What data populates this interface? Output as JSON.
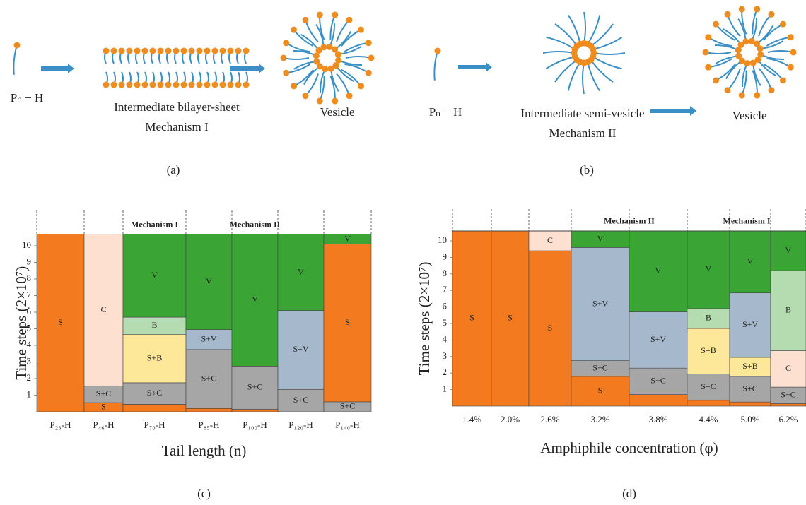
{
  "panels": [
    {
      "monomer": "Pₙ − H",
      "intermediate": "Intermediate bilayer-sheet",
      "mechanism": "Mechanism I",
      "product": "Vesicle",
      "label": "(a)"
    },
    {
      "monomer": "Pₙ − H",
      "intermediate": "Intermediate semi-vesicle",
      "mechanism": "Mechanism II",
      "product": "Vesicle",
      "label": "(b)"
    }
  ],
  "chart_data": [
    {
      "type": "bar",
      "stacked": true,
      "ylabel": "Time steps (2×10⁷)",
      "xlabel": "Tail length (n)",
      "panel_label": "(c)",
      "annotations": [
        "Mechanism I",
        "Mechanism II"
      ],
      "ylim": [
        0,
        10.7
      ],
      "yticks": [
        1,
        2,
        3,
        4,
        5,
        6,
        7,
        8,
        9,
        10
      ],
      "categories": [
        "P₂₃-H",
        "P₄₆-H",
        "P₇₀-H",
        "P₈₅-H",
        "P₁₀₀-H",
        "P₁₂₀-H",
        "P₁₄₀-H"
      ],
      "segments": [
        [
          {
            "label": "S",
            "value": 10.7,
            "color": "#f47a20"
          }
        ],
        [
          {
            "label": "S",
            "value": 0.55,
            "color": "#f47a20"
          },
          {
            "label": "S+C",
            "value": 1.0,
            "color": "#a6a6a6"
          },
          {
            "label": "C",
            "value": 9.15,
            "color": "#fde0d0"
          }
        ],
        [
          {
            "value": 0.45,
            "color": "#f47a20"
          },
          {
            "label": "S+C",
            "value": 1.3,
            "color": "#a6a6a6"
          },
          {
            "label": "S+B",
            "value": 2.9,
            "color": "#fde89a"
          },
          {
            "label": "B",
            "value": 1.05,
            "color": "#b5dbb0"
          },
          {
            "label": "V",
            "value": 5.0,
            "color": "#3aa535"
          }
        ],
        [
          {
            "value": 0.2,
            "color": "#f47a20"
          },
          {
            "label": "S+C",
            "value": 3.55,
            "color": "#a6a6a6"
          },
          {
            "label": "S+V",
            "value": 1.2,
            "color": "#a6b8cc"
          },
          {
            "label": "V",
            "value": 5.75,
            "color": "#3aa535"
          }
        ],
        [
          {
            "value": 0.15,
            "color": "#f47a20"
          },
          {
            "label": "S+C",
            "value": 2.6,
            "color": "#a6a6a6"
          },
          {
            "label": "V",
            "value": 7.95,
            "color": "#3aa535"
          }
        ],
        [
          {
            "label": "S+C",
            "value": 1.35,
            "color": "#a6a6a6"
          },
          {
            "label": "S+V",
            "value": 4.75,
            "color": "#a6b8cc"
          },
          {
            "label": "V",
            "value": 4.6,
            "color": "#3aa535"
          }
        ],
        [
          {
            "label": "S+C",
            "value": 0.6,
            "color": "#a6a6a6"
          },
          {
            "label": "S",
            "value": 9.5,
            "color": "#f47a20"
          },
          {
            "label": "V",
            "value": 0.6,
            "color": "#3aa535"
          }
        ]
      ]
    },
    {
      "type": "bar",
      "stacked": true,
      "ylabel": "Time steps (2×10⁷)",
      "xlabel": "Amphiphile concentration (φ)",
      "panel_label": "(d)",
      "annotations": [
        "Mechanism II",
        "Mechanism I"
      ],
      "ylim": [
        0,
        10.6
      ],
      "yticks": [
        1,
        2,
        3,
        4,
        5,
        6,
        7,
        8,
        9,
        10
      ],
      "categories": [
        "1.4%",
        "2.0%",
        "2.6%",
        "3.2%",
        "3.8%",
        "4.4%",
        "5.0%",
        "6.2%"
      ],
      "segments": [
        [
          {
            "label": "S",
            "value": 10.6,
            "color": "#f47a20"
          }
        ],
        [
          {
            "label": "S",
            "value": 10.6,
            "color": "#f47a20"
          }
        ],
        [
          {
            "label": "S",
            "value": 9.4,
            "color": "#f47a20"
          },
          {
            "label": "C",
            "value": 1.2,
            "color": "#fde0d0"
          }
        ],
        [
          {
            "label": "S",
            "value": 1.8,
            "color": "#f47a20"
          },
          {
            "label": "S+C",
            "value": 0.95,
            "color": "#a6a6a6"
          },
          {
            "label": "S+V",
            "value": 6.85,
            "color": "#a6b8cc"
          },
          {
            "label": "V",
            "value": 1.0,
            "color": "#3aa535"
          }
        ],
        [
          {
            "value": 0.7,
            "color": "#f47a20"
          },
          {
            "label": "S+C",
            "value": 1.6,
            "color": "#a6a6a6"
          },
          {
            "label": "S+V",
            "value": 3.4,
            "color": "#a6b8cc"
          },
          {
            "label": "V",
            "value": 4.9,
            "color": "#3aa535"
          }
        ],
        [
          {
            "value": 0.35,
            "color": "#f47a20"
          },
          {
            "label": "S+C",
            "value": 1.6,
            "color": "#a6a6a6"
          },
          {
            "label": "S+B",
            "value": 2.75,
            "color": "#fde89a"
          },
          {
            "label": "B",
            "value": 1.2,
            "color": "#b5dbb0"
          },
          {
            "label": "V",
            "value": 4.7,
            "color": "#3aa535"
          }
        ],
        [
          {
            "value": 0.25,
            "color": "#f47a20"
          },
          {
            "label": "S+C",
            "value": 1.55,
            "color": "#a6a6a6"
          },
          {
            "label": "S+B",
            "value": 1.15,
            "color": "#fde89a"
          },
          {
            "label": "S+V",
            "value": 3.9,
            "color": "#a6b8cc"
          },
          {
            "label": "V",
            "value": 3.75,
            "color": "#3aa535"
          }
        ],
        [
          {
            "value": 0.15,
            "color": "#f47a20"
          },
          {
            "label": "S+C",
            "value": 1.0,
            "color": "#a6a6a6"
          },
          {
            "label": "C",
            "value": 2.2,
            "color": "#fde0d0"
          },
          {
            "label": "B",
            "value": 4.85,
            "color": "#b5dbb0"
          },
          {
            "label": "V",
            "value": 2.4,
            "color": "#3aa535"
          }
        ]
      ]
    }
  ]
}
